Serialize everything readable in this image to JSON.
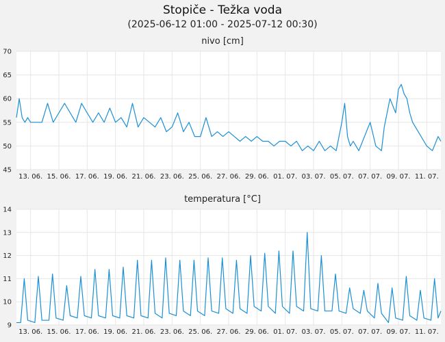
{
  "page": {
    "title": "Stopiče - Težka voda",
    "subtitle": "(2025-06-12 01:00 - 2025-07-12 00:30)"
  },
  "colors": {
    "background": "#f2f2f2",
    "plot_bg": "#ffffff",
    "line": "#1a8fd6",
    "grid": "#e6e6e6"
  },
  "chart_data": [
    {
      "type": "line",
      "title": "nivo [cm]",
      "xlabel": "",
      "ylabel": "",
      "xlim": [
        0.0,
        30.0
      ],
      "ylim": [
        45,
        70
      ],
      "yticks": [
        45,
        50,
        55,
        60,
        65,
        70
      ],
      "xtick_positions": [
        1,
        3,
        5,
        7,
        9,
        11,
        13,
        15,
        17,
        19,
        21,
        23,
        25,
        27,
        29
      ],
      "xtick_labels": [
        "13. 06.",
        "15. 06.",
        "17. 06.",
        "19. 06.",
        "21. 06.",
        "23. 06.",
        "25. 06.",
        "27. 06.",
        "29. 06.",
        "01. 07.",
        "03. 07.",
        "05. 07.",
        "07. 07.",
        "09. 07.",
        "11. 07."
      ],
      "grid": true,
      "series": [
        {
          "x": [
            0.0,
            0.2,
            0.4,
            0.6,
            0.8,
            1.0,
            1.4,
            1.8,
            2.2,
            2.6,
            3.0,
            3.4,
            3.8,
            4.2,
            4.6,
            5.0,
            5.4,
            5.8,
            6.2,
            6.6,
            7.0,
            7.4,
            7.8,
            8.2,
            8.6,
            9.0,
            9.4,
            9.8,
            10.2,
            10.6,
            11.0,
            11.4,
            11.8,
            12.2,
            12.6,
            13.0,
            13.4,
            13.8,
            14.2,
            14.6,
            15.0,
            15.4,
            15.8,
            16.2,
            16.6,
            17.0,
            17.4,
            17.8,
            18.2,
            18.6,
            19.0,
            19.4,
            19.8,
            20.2,
            20.6,
            21.0,
            21.4,
            21.8,
            22.2,
            22.6,
            23.0,
            23.2,
            23.4,
            23.6,
            23.8,
            24.0,
            24.2,
            24.6,
            25.0,
            25.4,
            25.8,
            26.0,
            26.4,
            26.8,
            27.0,
            27.2,
            27.4,
            27.6,
            27.8,
            28.0,
            28.4,
            28.8,
            29.0,
            29.4,
            29.8,
            30.0
          ],
          "y": [
            56,
            60,
            56,
            55,
            56,
            55,
            55,
            55,
            59,
            55,
            57,
            59,
            57,
            55,
            59,
            57,
            55,
            57,
            55,
            58,
            55,
            56,
            54,
            59,
            54,
            56,
            55,
            54,
            56,
            53,
            54,
            57,
            53,
            55,
            52,
            52,
            56,
            52,
            53,
            52,
            53,
            52,
            51,
            52,
            51,
            52,
            51,
            51,
            50,
            51,
            51,
            50,
            51,
            49,
            50,
            49,
            51,
            49,
            50,
            49,
            55,
            59,
            52,
            50,
            51,
            50,
            49,
            52,
            55,
            50,
            49,
            54,
            60,
            57,
            62,
            63,
            61,
            60,
            57,
            55,
            53,
            51,
            50,
            49,
            52,
            51
          ]
        }
      ]
    },
    {
      "type": "line",
      "title": "temperatura [°C]",
      "xlabel": "",
      "ylabel": "",
      "xlim": [
        0.0,
        30.0
      ],
      "ylim": [
        9,
        14
      ],
      "yticks": [
        9,
        10,
        11,
        12,
        13,
        14
      ],
      "xtick_positions": [
        1,
        3,
        5,
        7,
        9,
        11,
        13,
        15,
        17,
        19,
        21,
        23,
        25,
        27,
        29
      ],
      "xtick_labels": [
        "13. 06.",
        "15. 06.",
        "17. 06.",
        "19. 06.",
        "21. 06.",
        "23. 06.",
        "25. 06.",
        "27. 06.",
        "29. 06.",
        "01. 07.",
        "03. 07.",
        "05. 07.",
        "07. 07.",
        "09. 07.",
        "11. 07."
      ],
      "grid": true,
      "series": [
        {
          "x": [
            0.0,
            0.3,
            0.55,
            0.8,
            1.3,
            1.55,
            1.8,
            2.3,
            2.55,
            2.8,
            3.3,
            3.55,
            3.8,
            4.3,
            4.55,
            4.8,
            5.3,
            5.55,
            5.8,
            6.3,
            6.55,
            6.8,
            7.3,
            7.55,
            7.8,
            8.3,
            8.55,
            8.8,
            9.3,
            9.55,
            9.8,
            10.3,
            10.55,
            10.8,
            11.3,
            11.55,
            11.8,
            12.3,
            12.55,
            12.8,
            13.3,
            13.55,
            13.8,
            14.3,
            14.55,
            14.8,
            15.3,
            15.55,
            15.8,
            16.3,
            16.55,
            16.8,
            17.3,
            17.55,
            17.8,
            18.3,
            18.55,
            18.8,
            19.3,
            19.55,
            19.8,
            20.3,
            20.55,
            20.8,
            21.3,
            21.55,
            21.8,
            22.3,
            22.55,
            22.8,
            23.3,
            23.55,
            23.8,
            24.3,
            24.55,
            24.8,
            25.3,
            25.55,
            25.8,
            26.3,
            26.55,
            26.8,
            27.3,
            27.55,
            27.8,
            28.3,
            28.55,
            28.8,
            29.3,
            29.55,
            29.8,
            30.0
          ],
          "y": [
            9.1,
            9.1,
            11.0,
            9.2,
            9.1,
            11.1,
            9.2,
            9.2,
            11.2,
            9.3,
            9.2,
            10.7,
            9.4,
            9.3,
            11.1,
            9.4,
            9.3,
            11.4,
            9.4,
            9.3,
            11.4,
            9.4,
            9.3,
            11.5,
            9.4,
            9.3,
            11.8,
            9.4,
            9.3,
            11.8,
            9.5,
            9.3,
            11.9,
            9.5,
            9.4,
            11.8,
            9.6,
            9.4,
            11.8,
            9.6,
            9.4,
            11.9,
            9.6,
            9.5,
            11.9,
            9.7,
            9.5,
            11.8,
            9.7,
            9.5,
            12.0,
            9.8,
            9.6,
            12.1,
            9.8,
            9.5,
            12.2,
            9.8,
            9.5,
            12.2,
            9.8,
            9.6,
            13.0,
            9.7,
            9.6,
            12.0,
            9.6,
            9.6,
            11.2,
            9.6,
            9.5,
            10.6,
            9.7,
            9.5,
            10.5,
            9.6,
            9.3,
            10.8,
            9.5,
            9.1,
            10.6,
            9.3,
            9.2,
            11.1,
            9.4,
            9.2,
            10.5,
            9.3,
            9.2,
            11.0,
            9.3,
            9.6
          ]
        }
      ]
    }
  ]
}
